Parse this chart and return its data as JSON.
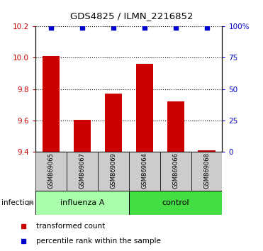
{
  "title": "GDS4825 / ILMN_2216852",
  "categories": [
    "GSM869065",
    "GSM869067",
    "GSM869069",
    "GSM869064",
    "GSM869066",
    "GSM869068"
  ],
  "bar_values": [
    10.01,
    9.605,
    9.77,
    9.96,
    9.72,
    9.41
  ],
  "bar_color": "#cc0000",
  "percentile_color": "#0000cc",
  "ylim_left": [
    9.4,
    10.2
  ],
  "ylim_right": [
    0,
    100
  ],
  "yticks_left": [
    9.4,
    9.6,
    9.8,
    10.0,
    10.2
  ],
  "yticks_right": [
    0,
    25,
    50,
    75,
    100
  ],
  "yticklabels_right": [
    "0",
    "25",
    "50",
    "75",
    "100%"
  ],
  "groups": [
    {
      "label": "influenza A",
      "indices": [
        0,
        1,
        2
      ],
      "color": "#aaffaa"
    },
    {
      "label": "control",
      "indices": [
        3,
        4,
        5
      ],
      "color": "#44dd44"
    }
  ],
  "group_label": "infection",
  "legend_bar_label": "transformed count",
  "legend_dot_label": "percentile rank within the sample",
  "bar_width": 0.55,
  "background_color": "#ffffff",
  "label_bg_color": "#cccccc",
  "percentile_rank": 99
}
